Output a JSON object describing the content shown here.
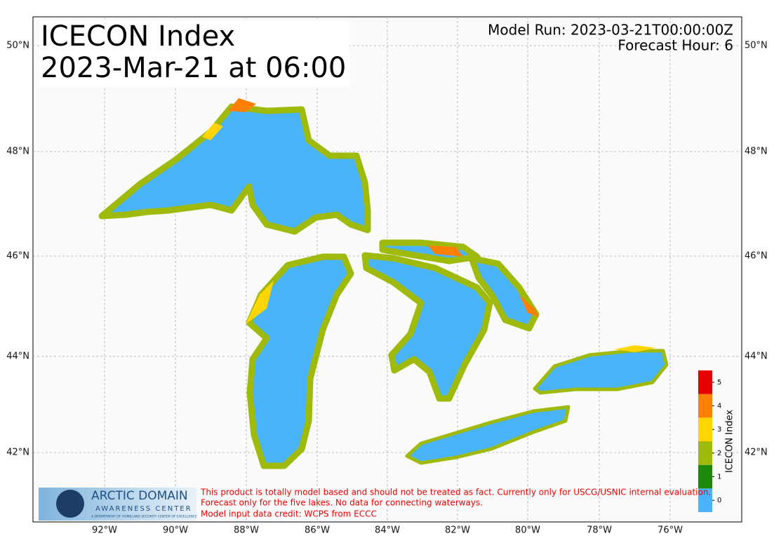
{
  "title_lines": [
    "ICECON Index",
    "2023-Mar-21 at 06:00"
  ],
  "model_run": "Model Run: 2023-03-21T00:00:00Z",
  "forecast_hour": "Forecast Hour: 6",
  "longitude_labels": [
    "92°W",
    "90°W",
    "88°W",
    "86°W",
    "84°W",
    "82°W",
    "80°W",
    "78°W",
    "76°W"
  ],
  "latitude_labels": [
    "50°N",
    "48°N",
    "46°N",
    "44°N",
    "42°N"
  ],
  "colorbar": {
    "label": "ICECON Index",
    "ticks": [
      0,
      1,
      2,
      3,
      4,
      5
    ],
    "colors": [
      "#49b4fa",
      "#1e8a0c",
      "#9fba0a",
      "#ffd500",
      "#ff8000",
      "#e60000"
    ]
  },
  "logo": {
    "name": "ARCTIC DOMAIN",
    "subtitle": "AWARENESS CENTER",
    "tagline": "A DEPARTMENT OF HOMELAND SECURITY CENTER OF EXCELLENCE"
  },
  "disclaimer": [
    "This product is totally model based and should not be treated as fact. Currently only for USCG/USNIC internal evaluation.",
    "Forecast only for the five lakes. No data for connecting waterways.",
    "Model input data credit: WCPS from ECCC"
  ]
}
